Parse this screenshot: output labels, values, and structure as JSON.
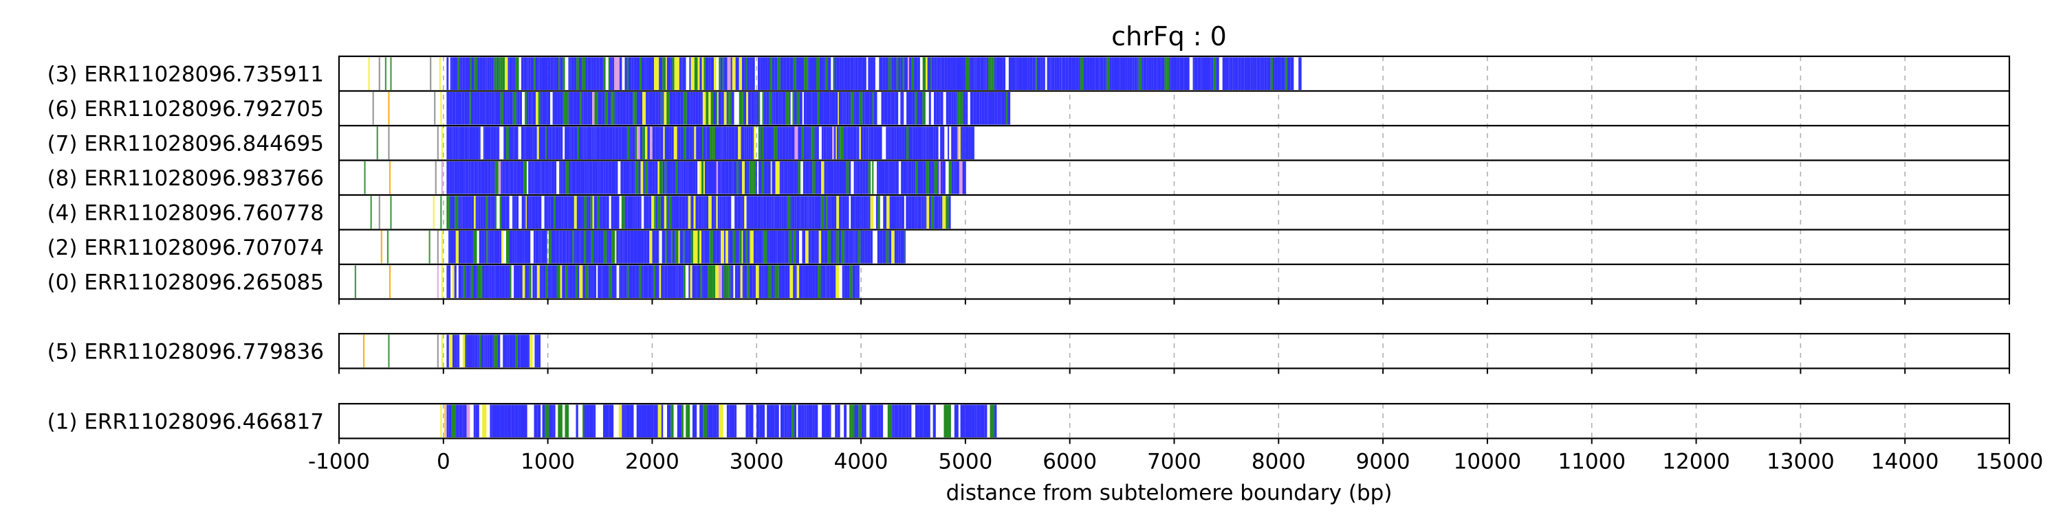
{
  "chart_data": {
    "type": "telomere-read-track",
    "title": "chrFq : 0",
    "xlabel": "distance from subtelomere boundary (bp)",
    "ylabel": "",
    "xlim": [
      -1000,
      15000
    ],
    "x_ticks": [
      "-1000",
      "0",
      "1000",
      "2000",
      "3000",
      "4000",
      "5000",
      "6000",
      "7000",
      "8000",
      "9000",
      "10000",
      "11000",
      "12000",
      "13000",
      "14000",
      "15000"
    ],
    "grid": "vertical dashed",
    "colors": {
      "blue": "#3333ff",
      "green": "#228b22",
      "yellow": "#eeee33",
      "violet": "#dda0dd",
      "orange": "#ffa500",
      "gray": "#888888",
      "white": "#ffffff"
    },
    "groups": [
      {
        "reads": [
          {
            "label": "(3) ERR11028096.735911",
            "start": -930,
            "end": 8220,
            "gap_at": 4120,
            "seed": 3,
            "pre_marks": [
              [
                -720,
                "yellow"
              ],
              [
                -620,
                "gray"
              ],
              [
                -560,
                "green"
              ],
              [
                -510,
                "green"
              ],
              [
                -130,
                "gray"
              ],
              [
                -40,
                "yellow"
              ]
            ]
          },
          {
            "label": "(6) ERR11028096.792705",
            "start": -820,
            "end": 5430,
            "gap_at": 4130,
            "seed": 6,
            "pre_marks": [
              [
                -680,
                "gray"
              ],
              [
                -530,
                "orange"
              ],
              [
                -90,
                "gray"
              ],
              [
                -30,
                "yellow"
              ]
            ]
          },
          {
            "label": "(7) ERR11028096.844695",
            "start": -800,
            "end": 5080,
            "gap_at": 4180,
            "seed": 7,
            "pre_marks": [
              [
                -640,
                "green"
              ],
              [
                -530,
                "gray"
              ],
              [
                -60,
                "gray"
              ],
              [
                -20,
                "yellow"
              ]
            ]
          },
          {
            "label": "(8) ERR11028096.983766",
            "start": -820,
            "end": 5000,
            "gap_at": 4110,
            "seed": 8,
            "pre_marks": [
              [
                -760,
                "green"
              ],
              [
                -520,
                "orange"
              ],
              [
                -80,
                "gray"
              ],
              [
                -20,
                "violet"
              ]
            ]
          },
          {
            "label": "(4) ERR11028096.760778",
            "start": -880,
            "end": 4860,
            "gap_at": 4100,
            "seed": 4,
            "pre_marks": [
              [
                -700,
                "green"
              ],
              [
                -620,
                "gray"
              ],
              [
                -510,
                "green"
              ],
              [
                -100,
                "yellow"
              ],
              [
                -30,
                "green"
              ]
            ]
          },
          {
            "label": "(2) ERR11028096.707074",
            "start": -780,
            "end": 4420,
            "gap_at": 4090,
            "seed": 2,
            "pre_marks": [
              [
                -600,
                "orange"
              ],
              [
                -540,
                "green"
              ],
              [
                -140,
                "green"
              ],
              [
                -60,
                "gray"
              ],
              [
                -20,
                "yellow"
              ]
            ]
          },
          {
            "label": "(0) ERR11028096.265085",
            "start": -870,
            "end": 3980,
            "gap_at": null,
            "seed": 0,
            "pre_marks": [
              [
                -850,
                "green"
              ],
              [
                -520,
                "orange"
              ],
              [
                -60,
                "violet"
              ],
              [
                -20,
                "yellow"
              ]
            ]
          }
        ]
      },
      {
        "reads": [
          {
            "label": "(5) ERR11028096.779836",
            "start": -790,
            "end": 930,
            "gap_at": null,
            "seed": 5,
            "pre_marks": [
              [
                -770,
                "orange"
              ],
              [
                -530,
                "green"
              ],
              [
                -60,
                "gray"
              ],
              [
                -20,
                "yellow"
              ]
            ]
          }
        ]
      },
      {
        "reads": [
          {
            "label": "(1) ERR11028096.466817",
            "start": -30,
            "end": 5300,
            "gap_at": null,
            "seed": 1,
            "sparse": true,
            "pre_marks": [
              [
                -30,
                "yellow"
              ],
              [
                10,
                "orange"
              ]
            ]
          }
        ]
      }
    ]
  }
}
